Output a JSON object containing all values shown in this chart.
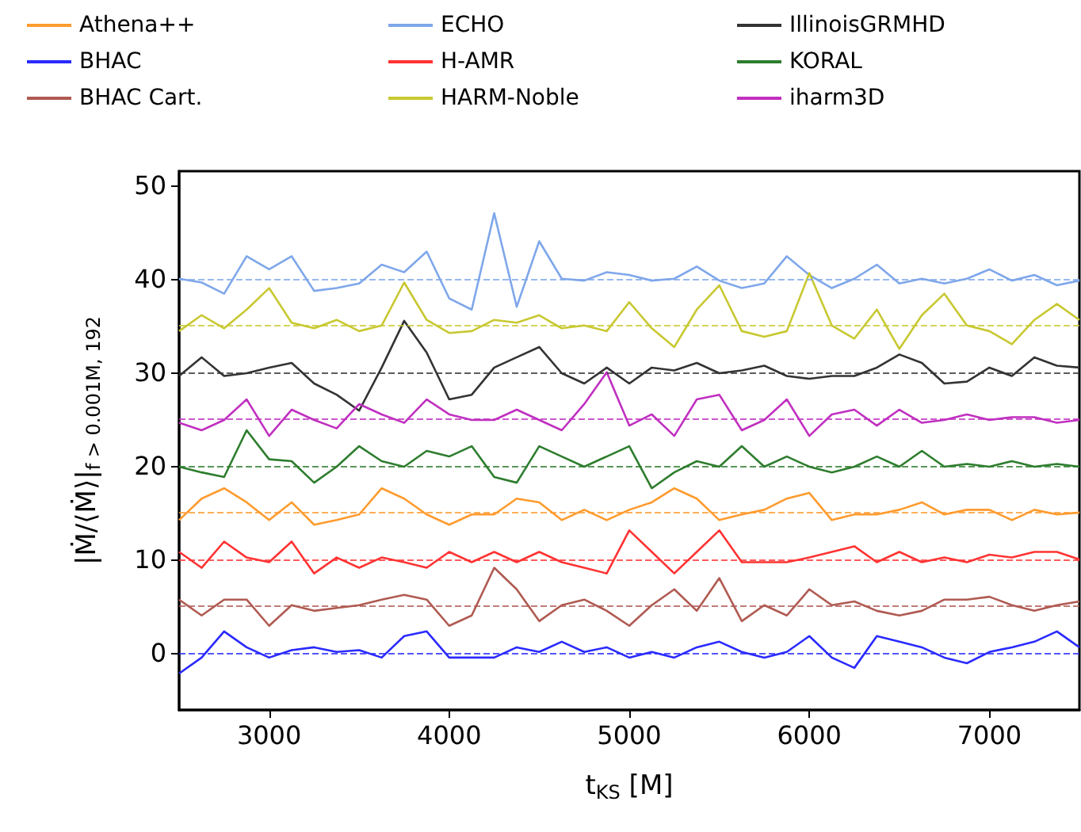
{
  "chart_data": {
    "type": "line",
    "xlabel": "t$_{KS}$ [M]",
    "ylabel": "|Ṁ/⟨Ṁ⟩|$_{f > 0.001M, 192}$",
    "x": [
      2500,
      2625,
      2750,
      2875,
      3000,
      3125,
      3250,
      3375,
      3500,
      3625,
      3750,
      3875,
      4000,
      4125,
      4250,
      4375,
      4500,
      4625,
      4750,
      4875,
      5000,
      5125,
      5250,
      5375,
      5500,
      5625,
      5750,
      5875,
      6000,
      6125,
      6250,
      6375,
      6500,
      6625,
      6750,
      6875,
      7000,
      7125,
      7250,
      7375,
      7500
    ],
    "series": [
      {
        "name": "Athena++",
        "color": "#ff9b2e",
        "values": [
          14.2,
          16.5,
          17.6,
          16.1,
          14.2,
          16.1,
          13.7,
          14.2,
          14.8,
          17.6,
          16.5,
          14.8,
          13.7,
          14.8,
          14.8,
          16.5,
          16.1,
          14.2,
          15.3,
          14.2,
          15.3,
          16.1,
          17.6,
          16.5,
          14.2,
          14.8,
          15.3,
          16.5,
          17.1,
          14.2,
          14.8,
          14.8,
          15.3,
          16.1,
          14.8,
          15.3,
          15.3,
          14.2,
          15.3,
          14.8,
          15
        ]
      },
      {
        "name": "BHAC",
        "color": "#2a2aff",
        "values": [
          -2.2,
          -0.5,
          2.3,
          0.6,
          -0.5,
          0.3,
          0.6,
          0.1,
          0.3,
          -0.5,
          1.8,
          2.3,
          -0.5,
          -0.5,
          -0.5,
          0.6,
          0.1,
          1.2,
          0.1,
          0.6,
          -0.5,
          0.1,
          -0.5,
          0.6,
          1.2,
          0.1,
          -0.5,
          0.1,
          1.8,
          -0.5,
          -1.6,
          1.8,
          1.2,
          0.6,
          -0.5,
          -1.1,
          0.1,
          0.6,
          1.2,
          2.3,
          0.6
        ]
      },
      {
        "name": "BHAC Cart.",
        "color": "#b05a52",
        "values": [
          5.7,
          4,
          5.7,
          5.7,
          2.9,
          5.1,
          4.5,
          4.8,
          5.1,
          5.7,
          6.2,
          5.7,
          2.9,
          4,
          9.1,
          6.8,
          3.4,
          5.1,
          5.7,
          4.5,
          2.9,
          5.1,
          6.8,
          4.5,
          8,
          3.4,
          5.1,
          4,
          6.8,
          5.1,
          5.5,
          4.5,
          4,
          4.5,
          5.7,
          5.7,
          6,
          5.1,
          4.5,
          5.1,
          5.5
        ]
      },
      {
        "name": "ECHO",
        "color": "#7fa7ea",
        "values": [
          40,
          39.6,
          38.4,
          42.4,
          41,
          42.4,
          38.7,
          39,
          39.5,
          41.5,
          40.7,
          42.9,
          37.9,
          36.7,
          47,
          37,
          44,
          40,
          39.8,
          40.7,
          40.4,
          39.8,
          40,
          41.3,
          39.8,
          39,
          39.5,
          42.4,
          40.4,
          39,
          40,
          41.5,
          39.5,
          40,
          39.5,
          40,
          41,
          39.8,
          40.4,
          39.3,
          39.8
        ]
      },
      {
        "name": "H-AMR",
        "color": "#ff3333",
        "values": [
          10.8,
          9.1,
          11.9,
          10.2,
          9.7,
          11.9,
          8.5,
          10.2,
          9.1,
          10.2,
          9.7,
          9.1,
          10.8,
          9.7,
          10.8,
          9.7,
          10.8,
          9.7,
          9.1,
          8.5,
          13.1,
          10.8,
          8.5,
          10.8,
          13.1,
          9.7,
          9.7,
          9.7,
          10.2,
          10.8,
          11.4,
          9.7,
          10.8,
          9.7,
          10.2,
          9.7,
          10.5,
          10.2,
          10.8,
          10.8,
          10
        ]
      },
      {
        "name": "HARM-Noble",
        "color": "#c8c832",
        "values": [
          34.4,
          36.1,
          34.7,
          36.7,
          39,
          35.3,
          34.7,
          35.6,
          34.4,
          35,
          39.6,
          35.6,
          34.2,
          34.4,
          35.6,
          35.3,
          36.1,
          34.7,
          35,
          34.4,
          37.5,
          34.7,
          32.7,
          36.7,
          39.3,
          34.4,
          33.8,
          34.4,
          40.6,
          35,
          33.6,
          36.7,
          32.5,
          36.1,
          38.4,
          35,
          34.4,
          33,
          35.6,
          37.3,
          35.6
        ]
      },
      {
        "name": "IllinoisGRMHD",
        "color": "#333333",
        "values": [
          29.6,
          31.6,
          29.6,
          29.9,
          30.5,
          31,
          28.8,
          27.6,
          25.9,
          30.5,
          35.5,
          32.1,
          27.1,
          27.6,
          30.5,
          31.6,
          32.7,
          29.9,
          28.8,
          30.5,
          28.8,
          30.5,
          30.2,
          31,
          29.9,
          30.2,
          30.7,
          29.6,
          29.3,
          29.6,
          29.6,
          30.5,
          31.9,
          31,
          28.8,
          29,
          30.5,
          29.6,
          31.6,
          30.7,
          30.5
        ]
      },
      {
        "name": "KORAL",
        "color": "#2e7d2e",
        "values": [
          19.9,
          19.3,
          18.8,
          23.8,
          20.7,
          20.5,
          18.2,
          19.9,
          22.1,
          20.5,
          19.9,
          21.6,
          21,
          22.1,
          18.8,
          18.2,
          22.1,
          21,
          19.9,
          21,
          22.1,
          17.6,
          19.3,
          20.5,
          19.9,
          22.1,
          19.9,
          21,
          19.9,
          19.3,
          19.9,
          21,
          19.9,
          21.6,
          19.9,
          20.2,
          19.9,
          20.5,
          19.9,
          20.2,
          19.9
        ]
      },
      {
        "name": "iharm3D",
        "color": "#c030c0",
        "values": [
          24.6,
          23.8,
          24.9,
          27.1,
          23.2,
          26,
          24.9,
          24,
          26.6,
          25.5,
          24.6,
          27.1,
          25.5,
          24.9,
          24.9,
          26,
          24.9,
          23.8,
          26.6,
          30,
          24.3,
          25.5,
          23.2,
          27.1,
          27.6,
          23.8,
          24.9,
          27.1,
          23.2,
          25.5,
          26,
          24.3,
          26,
          24.6,
          24.9,
          25.5,
          24.9,
          25.2,
          25.2,
          24.6,
          24.9
        ]
      }
    ],
    "ref_lines": [
      {
        "axis": "y",
        "value": 0,
        "color": "#2a2aff",
        "line_style": "dashed"
      },
      {
        "axis": "y",
        "value": 5,
        "color": "#b05a52",
        "line_style": "dashed"
      },
      {
        "axis": "y",
        "value": 10,
        "color": "#ff3333",
        "line_style": "dashed"
      },
      {
        "axis": "y",
        "value": 15,
        "color": "#ff9b2e",
        "line_style": "dashed"
      },
      {
        "axis": "y",
        "value": 20,
        "color": "#2e7d2e",
        "line_style": "dashed"
      },
      {
        "axis": "y",
        "value": 25,
        "color": "#c030c0",
        "line_style": "dashed"
      },
      {
        "axis": "y",
        "value": 30,
        "color": "#333333",
        "line_style": "dashed"
      },
      {
        "axis": "y",
        "value": 35,
        "color": "#c8c832",
        "line_style": "dashed"
      },
      {
        "axis": "y",
        "value": 40,
        "color": "#7fa7ea",
        "line_style": "dashed"
      }
    ],
    "xlim": [
      2500,
      7500
    ],
    "xticks": [
      3000,
      4000,
      5000,
      6000,
      7000
    ],
    "ylim": [
      -6.1,
      51.5
    ],
    "yticks": [
      0,
      10,
      20,
      30,
      40,
      50
    ],
    "grid": false,
    "legend": "top",
    "marker": "none",
    "line_style": "solid"
  }
}
